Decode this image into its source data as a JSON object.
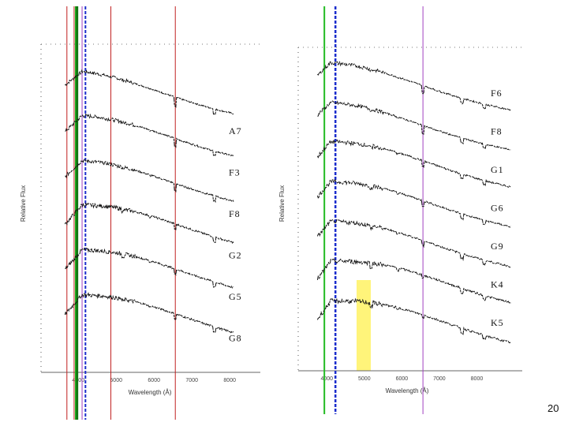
{
  "page_number": "20",
  "colors": {
    "spectrum": "#111111",
    "red_line": "#c02020",
    "green_line": "#22bb22",
    "dark_green_line": "#117711",
    "blue_line": "#1a2ccc",
    "purple_line": "#a040c0",
    "highlight": "#fff36b"
  },
  "chart_data": [
    {
      "type": "line",
      "title": "",
      "xlabel": "Wavelength (Å)",
      "ylabel": "Relative Flux",
      "xticks": [
        "4000",
        "5000",
        "6000",
        "7000",
        "8000"
      ],
      "xlim": [
        3600,
        8600
      ],
      "series": [
        {
          "name": "A7",
          "type": "A"
        },
        {
          "name": "F3",
          "type": "F"
        },
        {
          "name": "F8",
          "type": "F"
        },
        {
          "name": "G2",
          "type": "G"
        },
        {
          "name": "G5",
          "type": "G"
        },
        {
          "name": "G8",
          "type": "G"
        }
      ]
    },
    {
      "type": "line",
      "title": "",
      "xlabel": "Wavelength (Å)",
      "ylabel": "Relative Flux",
      "xticks": [
        "4000",
        "5000",
        "6000",
        "7000",
        "8000"
      ],
      "xlim": [
        3700,
        9000
      ],
      "series": [
        {
          "name": "F6",
          "type": "F"
        },
        {
          "name": "F8",
          "type": "F"
        },
        {
          "name": "G1",
          "type": "G"
        },
        {
          "name": "G6",
          "type": "G"
        },
        {
          "name": "G9",
          "type": "G"
        },
        {
          "name": "K4",
          "type": "K"
        },
        {
          "name": "K5",
          "type": "K"
        }
      ]
    }
  ]
}
